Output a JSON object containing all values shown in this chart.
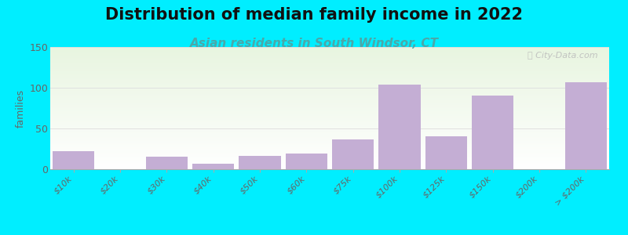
{
  "title": "Distribution of median family income in 2022",
  "subtitle": "Asian residents in South Windsor, CT",
  "ylabel": "families",
  "categories": [
    "$10k",
    "$20k",
    "$30k",
    "$40k",
    "$50k",
    "$60k",
    "$75k",
    "$100k",
    "$125k",
    "$150k",
    "$200k",
    "> $200k"
  ],
  "values": [
    22,
    0,
    15,
    7,
    16,
    19,
    37,
    104,
    40,
    90,
    0,
    107
  ],
  "bar_color": "#c4aed4",
  "background_outer": "#00eeff",
  "background_plot_top": "#e8f5e0",
  "background_plot_bottom": "#ffffff",
  "title_fontsize": 15,
  "subtitle_fontsize": 11,
  "subtitle_color": "#4aa8aa",
  "ylabel_color": "#666666",
  "tick_color": "#666666",
  "ylim": [
    0,
    150
  ],
  "yticks": [
    0,
    50,
    100,
    150
  ],
  "grid_color": "#dddddd",
  "watermark_text": "ⓘ City-Data.com",
  "watermark_color": "#bbbbbb"
}
